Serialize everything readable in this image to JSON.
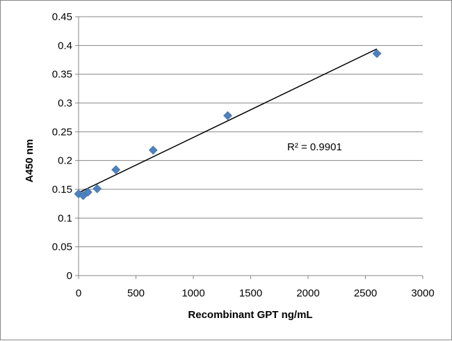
{
  "chart_data": {
    "type": "scatter",
    "xlabel": "Recombinant GPT ng/mL",
    "ylabel": "A450 nm",
    "xlim": [
      0,
      3000
    ],
    "ylim": [
      0,
      0.45
    ],
    "xticks": [
      0,
      500,
      1000,
      1500,
      2000,
      2500,
      3000
    ],
    "yticks": [
      0,
      0.05,
      0.1,
      0.15,
      0.2,
      0.25,
      0.3,
      0.35,
      0.4,
      0.45
    ],
    "grid": "horizontal",
    "marker": "diamond",
    "marker_color": "#4f81bd",
    "series": [
      {
        "points": [
          {
            "x": 0,
            "y": 0.142
          },
          {
            "x": 40,
            "y": 0.139
          },
          {
            "x": 81,
            "y": 0.145
          },
          {
            "x": 162,
            "y": 0.151
          },
          {
            "x": 325,
            "y": 0.184
          },
          {
            "x": 650,
            "y": 0.218
          },
          {
            "x": 1300,
            "y": 0.278
          },
          {
            "x": 2600,
            "y": 0.386
          }
        ]
      }
    ],
    "trendline": {
      "type": "linear",
      "x_range": [
        0,
        2600
      ],
      "y_start": 0.144,
      "y_end": 0.394
    },
    "annotations": [
      {
        "text": "R² = 0.9901"
      }
    ]
  }
}
